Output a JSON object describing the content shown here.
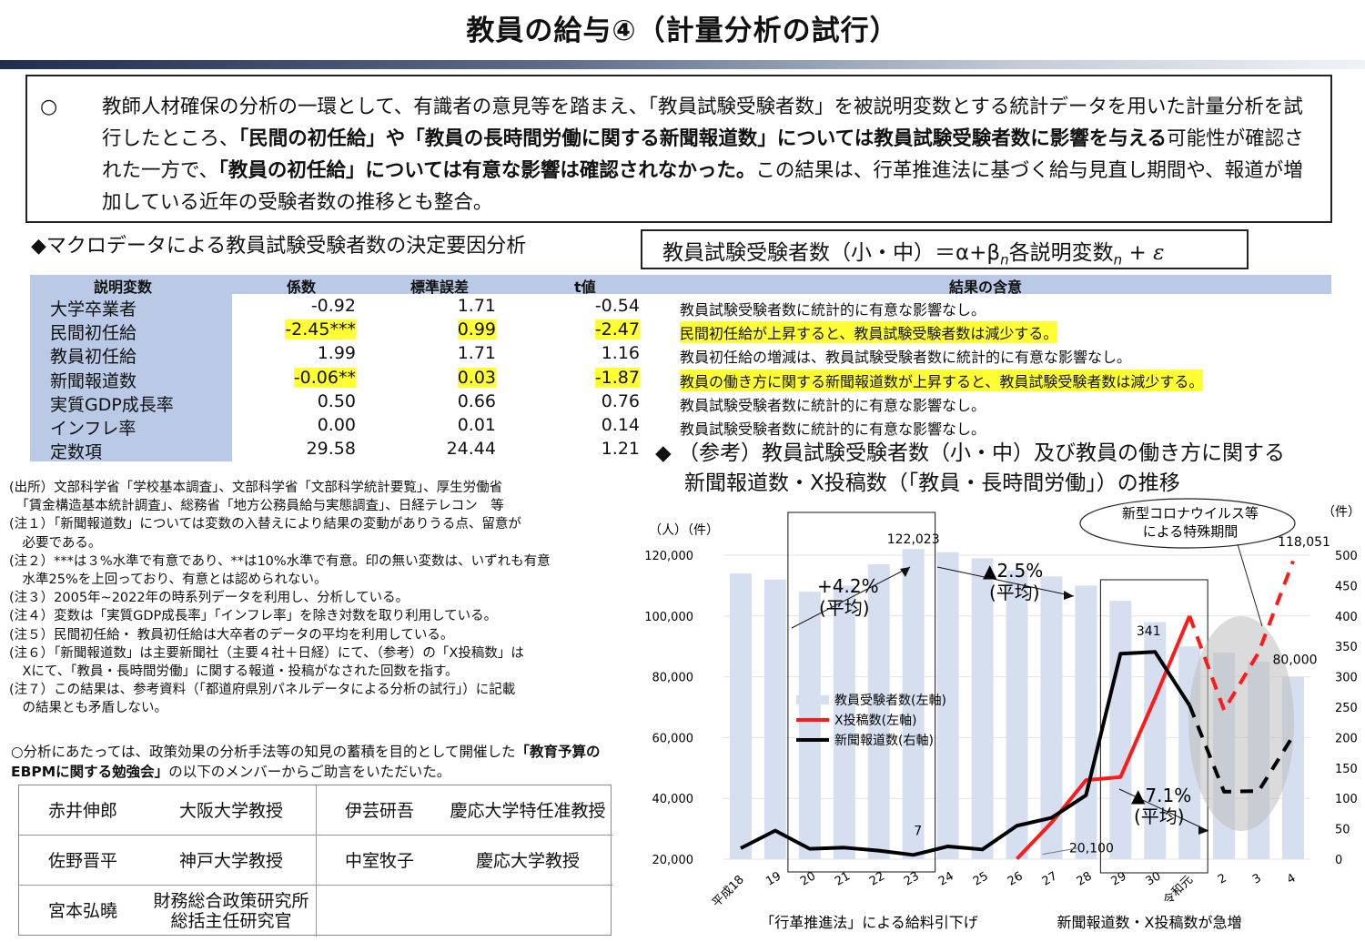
{
  "title": "教員の給与④（計量分析の試行）",
  "summary": {
    "bullet": "○",
    "p1": "教師人材確保の分析の一環として、有識者の意見等を踏まえ、「教員試験受験者数」を被説明変数とする統計データを用いた計量分析を試行したところ、",
    "b1": "「民間の初任給」や「教員の長時間労働に関する新聞報道数」については教員試験受験者数に影響を与える",
    "p2": "可能性が確認された一方で、",
    "b2": "「教員の初任給」については有意な影響は確認されなかった。",
    "p3": "この結果は、行革推進法に基づく給与見直し期間や、報道が増加している近年の受験者数の推移とも整合。"
  },
  "macro_heading": "◆マクロデータによる教員試験受験者数の決定要因分析",
  "formula": {
    "lhs": "教員試験受験者数（小・中）＝α+β",
    "sub1": "n",
    "mid": "各説明変数",
    "sub2": "n",
    "plus": " + ",
    "eps": "ε"
  },
  "regression": {
    "headers": [
      "説明変数",
      "係数",
      "標準誤差",
      "t値",
      "結果の含意"
    ],
    "rows": [
      {
        "var": "大学卒業者",
        "coef": "-0.92",
        "se": "1.71",
        "t": "-0.54",
        "result": "教員試験受験者数に統計的に有意な影響なし。",
        "highlight": false
      },
      {
        "var": "民間初任給",
        "coef": "-2.45***",
        "se": "0.99",
        "t": "-2.47",
        "result": "民間初任給が上昇すると、教員試験受験者数は減少する。",
        "highlight": true
      },
      {
        "var": "教員初任給",
        "coef": "1.99",
        "se": "1.71",
        "t": "1.16",
        "result": "教員初任給の増減は、教員試験受験者数に統計的に有意な影響なし。",
        "highlight": false
      },
      {
        "var": "新聞報道数",
        "coef": "-0.06**",
        "se": "0.03",
        "t": "-1.87",
        "result": "教員の働き方に関する新聞報道数が上昇すると、教員試験受験者数は減少する。",
        "highlight": true
      },
      {
        "var": "実質GDP成長率",
        "coef": "0.50",
        "se": "0.66",
        "t": "0.76",
        "result": "教員試験受験者数に統計的に有意な影響なし。",
        "highlight": false
      },
      {
        "var": "インフレ率",
        "coef": "0.00",
        "se": "0.01",
        "t": "0.14",
        "result": "教員試験受験者数に統計的に有意な影響なし。",
        "highlight": false
      },
      {
        "var": "定数項",
        "coef": "29.58",
        "se": "24.44",
        "t": "1.21",
        "result": "",
        "highlight": false
      }
    ]
  },
  "notes": [
    "(出所）文部科学省「学校基本調査」、文部科学省「文部科学統計要覧」、厚生労働省",
    "　「賃金構造基本統計調査」、総務省「地方公務員給与実態調査」、日経テレコン　等",
    "(注１）「新聞報道数」については変数の入替えにより結果の変動がありうる点、留意が",
    "　必要である。",
    "(注２）***は３%水準で有意であり、**は10%水準で有意。印の無い変数は、いずれも有意",
    "　水準25%を上回っており、有意とは認められない。",
    "(注３）2005年~2022年の時系列データを利用し、分析している。",
    "(注４）変数は「実質GDP成長率」「インフレ率」を除き対数を取り利用している。",
    "(注５）民間初任給・ 教員初任給は大卒者のデータの平均を利用している。",
    "(注６）「新聞報道数」は主要新聞社（主要４社＋日経）にて、（参考）の「X投稿数」は",
    "　Xにて、「教員・長時間労働」に関する報道・投稿がなされた回数を指す。",
    "(注７）この結果は、参考資料（「都道府県別パネルデータによる分析の試行」）に記載",
    "　の結果とも矛盾しない。"
  ],
  "advice": {
    "p1": "○分析にあたっては、政策効果の分析手法等の知見の蓄積を目的として開催した",
    "b1": "「教育予算の",
    "b2": "EBPMに関する勉強会」",
    "p2": "の以下のメンバーからご助言をいただいた。"
  },
  "members": [
    {
      "name": "赤井伸郎",
      "title": "大阪大学教授"
    },
    {
      "name": "伊芸研吾",
      "title": "慶応大学特任准教授"
    },
    {
      "name": "佐野晋平",
      "title": "神戸大学教授"
    },
    {
      "name": "中室牧子",
      "title": "慶応大学教授"
    },
    {
      "name": "宮本弘曉",
      "title": "財務総合政策研究所\n総括主任研究官"
    }
  ],
  "chart_heading": {
    "line1": "◆ （参考）教員試験受験者数（小・中）及び教員の働き方に関する",
    "line2": "新聞報道数・X投稿数（「教員・長時間労働」）の推移"
  },
  "chart_data": {
    "type": "bar+line",
    "categories": [
      "平成18",
      "19",
      "20",
      "21",
      "22",
      "23",
      "24",
      "25",
      "26",
      "27",
      "28",
      "29",
      "30",
      "令和元",
      "2",
      "3",
      "4"
    ],
    "left_axis": {
      "label": "（人）（件）",
      "ylim": [
        20000,
        120000
      ],
      "ticks": [
        "20,000",
        "40,000",
        "60,000",
        "80,000",
        "100,000",
        "120,000"
      ]
    },
    "right_axis": {
      "label": "（件）",
      "ylim": [
        0,
        500
      ],
      "ticks": [
        "0",
        "50",
        "100",
        "150",
        "200",
        "250",
        "300",
        "350",
        "400",
        "450",
        "500"
      ]
    },
    "series": [
      {
        "name": "教員受験者数(左軸)",
        "kind": "bar",
        "axis": "left",
        "color": "#d6dff0",
        "values": [
          114000,
          112000,
          108000,
          110000,
          117000,
          122023,
          121000,
          119000,
          115000,
          113000,
          110000,
          105000,
          98000,
          90000,
          88000,
          85000,
          80000
        ]
      },
      {
        "name": "X投稿数(左軸)",
        "kind": "line",
        "axis": "left",
        "color": "#ff1a1a",
        "values": [
          null,
          null,
          null,
          null,
          null,
          null,
          null,
          null,
          20100,
          32000,
          46000,
          47000,
          73000,
          100000,
          null,
          null,
          null
        ],
        "dashed_values": [
          null,
          null,
          null,
          null,
          null,
          null,
          null,
          null,
          null,
          null,
          null,
          null,
          null,
          100000,
          69000,
          88000,
          118051
        ]
      },
      {
        "name": "新聞報道数(右軸)",
        "kind": "line",
        "axis": "right",
        "color": "#000000",
        "values": [
          18,
          47,
          17,
          19,
          14,
          7,
          21,
          16,
          55,
          68,
          105,
          338,
          341,
          253,
          null,
          null,
          null
        ],
        "dashed_values": [
          null,
          null,
          null,
          null,
          null,
          null,
          null,
          null,
          null,
          null,
          null,
          null,
          null,
          253,
          111,
          112,
          203
        ]
      }
    ],
    "data_labels": [
      "122,023",
      "118,051",
      "80,000",
      "341",
      "7",
      "20,100"
    ],
    "annotations": {
      "growth1": "+4.2%",
      "growth1_sub": "(平均)",
      "growth2": "▲2.5%",
      "growth2_sub": "(平均)",
      "growth3": "▲7.1%",
      "growth3_sub": "(平均)",
      "covid": "新型コロナウイルス等",
      "covid2": "による特殊期間",
      "period1": "「行革推進法」による給料引下げ",
      "period2": "新聞報道数・X投稿数が急増"
    }
  }
}
